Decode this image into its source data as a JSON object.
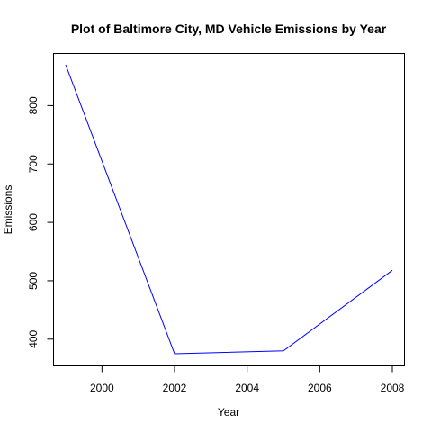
{
  "chart_data": {
    "type": "line",
    "title": "Plot of Baltimore City, MD Vehicle Emissions by Year",
    "xlabel": "Year",
    "ylabel": "Emissions",
    "x": [
      1999,
      2002,
      2005,
      2008
    ],
    "series": [
      {
        "values": [
          870,
          375,
          380,
          518
        ],
        "color": "#0000ff"
      }
    ],
    "xlim": [
      1999,
      2008
    ],
    "ylim": [
      375,
      870
    ],
    "xticks": [
      2000,
      2002,
      2004,
      2006,
      2008
    ],
    "yticks": [
      400,
      500,
      600,
      700,
      800
    ],
    "grid": false
  }
}
